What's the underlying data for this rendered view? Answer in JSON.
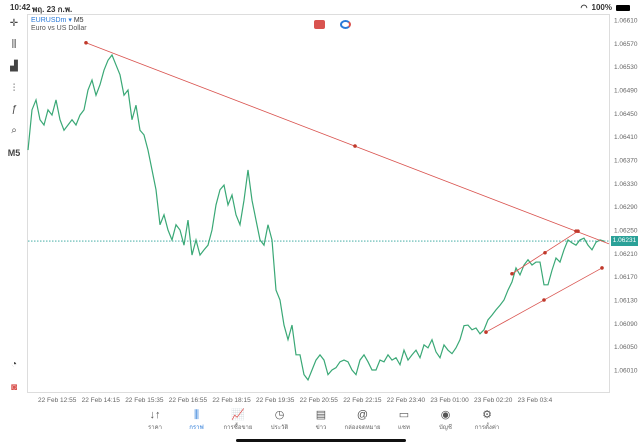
{
  "status_bar": {
    "time": "10:42",
    "date": "พฤ. 23 ก.พ.",
    "battery": "100%"
  },
  "chart": {
    "symbol": "EURUSDm",
    "timeframe": "M5",
    "description": "Euro vs US Dollar",
    "current_price": "1.06231",
    "current_price_value": 1.06231,
    "left_toolbar": [
      "crosshair-icon",
      "chart-type-icon",
      "indicators-icon",
      "objects-icon",
      "function-icon",
      "shapes-icon",
      "M5"
    ],
    "colors": {
      "line": "#3aa876",
      "trendline": "#d9534f",
      "price_tag": "#2aa198",
      "accent": "#2a7ad8"
    }
  },
  "chart_data": {
    "type": "line",
    "title": "EURUSDm M5",
    "y_ticks": [
      "1.06610",
      "1.06570",
      "1.06530",
      "1.06490",
      "1.06450",
      "1.06410",
      "1.06370",
      "1.06330",
      "1.06290",
      "1.06250",
      "1.06210",
      "1.06170",
      "1.06130",
      "1.06090",
      "1.06050",
      "1.06010"
    ],
    "ylim": [
      1.05985,
      1.06625
    ],
    "x_ticks": [
      "22 Feb 12:55",
      "22 Feb 14:15",
      "22 Feb 15:35",
      "22 Feb 16:55",
      "22 Feb 18:15",
      "22 Feb 19:35",
      "22 Feb 20:55",
      "22 Feb 22:15",
      "22 Feb 23:40",
      "23 Feb 01:00",
      "23 Feb 02:20",
      "23 Feb 03:4"
    ],
    "values": [
      1.06387,
      1.06456,
      1.06473,
      1.06439,
      1.0643,
      1.06456,
      1.06447,
      1.06473,
      1.06439,
      1.06421,
      1.0643,
      1.06439,
      1.0643,
      1.06447,
      1.06456,
      1.0649,
      1.06507,
      1.06481,
      1.06499,
      1.06524,
      1.06541,
      1.0655,
      1.06533,
      1.06516,
      1.06481,
      1.0649,
      1.06439,
      1.06464,
      1.06421,
      1.06413,
      1.06387,
      1.06353,
      1.06319,
      1.06259,
      1.06276,
      1.0625,
      1.06233,
      1.06259,
      1.0625,
      1.06224,
      1.06267,
      1.06207,
      1.06233,
      1.06207,
      1.06216,
      1.06224,
      1.0625,
      1.06293,
      1.06319,
      1.06327,
      1.06293,
      1.0631,
      1.06276,
      1.06259,
      1.06301,
      1.06353,
      1.06301,
      1.06267,
      1.06233,
      1.06224,
      1.06259,
      1.06233,
      1.06147,
      1.0613,
      1.06087,
      1.06062,
      1.06087,
      1.06036,
      1.06036,
      1.06002,
      1.05993,
      1.0601,
      1.06027,
      1.06036,
      1.06027,
      1.06002,
      1.0601,
      1.06014,
      1.06024,
      1.06027,
      1.06024,
      1.0601,
      1.06002,
      1.06027,
      1.06036,
      1.06024,
      1.0601,
      1.0601,
      1.06027,
      1.06024,
      1.06036,
      1.06027,
      1.06031,
      1.06019,
      1.06044,
      1.06027,
      1.06036,
      1.06044,
      1.06031,
      1.06053,
      1.06048,
      1.06062,
      1.06041,
      1.06031,
      1.06053,
      1.06044,
      1.06038,
      1.06048,
      1.06062,
      1.06086,
      1.06087,
      1.06079,
      1.06082,
      1.06072,
      1.06079,
      1.06096,
      1.06104,
      1.06113,
      1.06121,
      1.0613,
      1.06147,
      1.06161,
      1.06185,
      1.06173,
      1.0619,
      1.06199,
      1.0619,
      1.06195,
      1.06195,
      1.06156,
      1.06156,
      1.06181,
      1.06202,
      1.06195,
      1.06216,
      1.06233,
      1.06228,
      1.06224,
      1.06233,
      1.06236,
      1.06224,
      1.06216,
      1.06229,
      1.06233,
      1.06231
    ],
    "trendlines": [
      {
        "from": [
          14.5,
          1.06571
        ],
        "to": [
          137,
          1.06248
        ],
        "extend": true,
        "points": [
          [
            14.5,
            1.06571
          ],
          [
            81.75,
            1.06394
          ],
          [
            137,
            1.06248
          ]
        ]
      },
      {
        "from": [
          121,
          1.06175
        ],
        "to": [
          137.5,
          1.06248
        ],
        "points": [
          [
            121,
            1.06175
          ],
          [
            129.25,
            1.06211
          ],
          [
            137.5,
            1.06248
          ]
        ]
      },
      {
        "from": [
          114.5,
          1.06075
        ],
        "to": [
          143.5,
          1.06185
        ],
        "points": [
          [
            114.5,
            1.06075
          ],
          [
            129,
            1.0613
          ],
          [
            143.5,
            1.06185
          ]
        ]
      }
    ]
  },
  "tabs": [
    {
      "label": "ราคา",
      "icon": "quotes-icon",
      "glyph": "↓↑"
    },
    {
      "label": "กราฟ",
      "icon": "chart-icon",
      "glyph": "⫼",
      "active": true
    },
    {
      "label": "การซื้อขาย",
      "icon": "trade-icon",
      "glyph": "📈"
    },
    {
      "label": "ประวัติ",
      "icon": "history-icon",
      "glyph": "◷"
    },
    {
      "label": "ข่าว",
      "icon": "news-icon",
      "glyph": "▤"
    },
    {
      "label": "กล่องจดหมาย",
      "icon": "mailbox-icon",
      "glyph": "@"
    },
    {
      "label": "แชท",
      "icon": "chat-icon",
      "glyph": "▭"
    },
    {
      "label": "บัญชี",
      "icon": "account-icon",
      "glyph": "◉"
    },
    {
      "label": "การตั้งค่า",
      "icon": "settings-icon",
      "glyph": "⚙"
    }
  ]
}
